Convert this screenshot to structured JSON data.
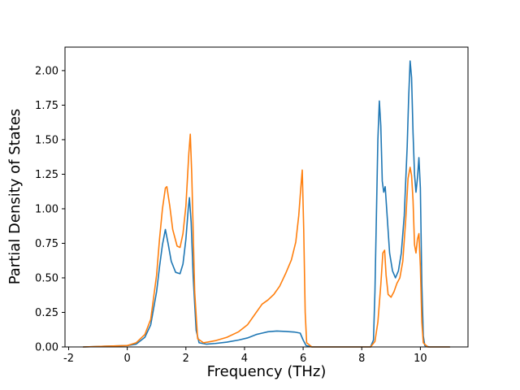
{
  "chart_data": {
    "type": "line",
    "title": "",
    "xlabel": "Frequency (THz)",
    "ylabel": "Partial Density of States",
    "xlim": [
      -2.125,
      11.625
    ],
    "ylim": [
      0,
      2.17
    ],
    "grid": false,
    "legend": "none",
    "xticks": {
      "values": [
        -2,
        0,
        2,
        4,
        6,
        8,
        10
      ],
      "labels": [
        "-2",
        "0",
        "2",
        "4",
        "6",
        "8",
        "10"
      ]
    },
    "yticks": {
      "values": [
        0.0,
        0.25,
        0.5,
        0.75,
        1.0,
        1.25,
        1.5,
        1.75,
        2.0
      ],
      "labels": [
        "0.00",
        "0.25",
        "0.50",
        "0.75",
        "1.00",
        "1.25",
        "1.50",
        "1.75",
        "2.00"
      ]
    },
    "series": [
      {
        "name": "pdos-series-blue",
        "color": "#1f77b4",
        "points": [
          [
            -1.5,
            0
          ],
          [
            0,
            0.01
          ],
          [
            0.3,
            0.02
          ],
          [
            0.6,
            0.07
          ],
          [
            0.8,
            0.16
          ],
          [
            1.0,
            0.4
          ],
          [
            1.1,
            0.58
          ],
          [
            1.2,
            0.74
          ],
          [
            1.3,
            0.85
          ],
          [
            1.4,
            0.74
          ],
          [
            1.5,
            0.62
          ],
          [
            1.65,
            0.54
          ],
          [
            1.8,
            0.53
          ],
          [
            1.9,
            0.6
          ],
          [
            2.0,
            0.78
          ],
          [
            2.08,
            1.0
          ],
          [
            2.12,
            1.08
          ],
          [
            2.18,
            0.9
          ],
          [
            2.25,
            0.5
          ],
          [
            2.35,
            0.12
          ],
          [
            2.45,
            0.03
          ],
          [
            2.7,
            0.02
          ],
          [
            3.0,
            0.025
          ],
          [
            3.4,
            0.035
          ],
          [
            3.8,
            0.05
          ],
          [
            4.1,
            0.065
          ],
          [
            4.4,
            0.09
          ],
          [
            4.6,
            0.1
          ],
          [
            4.8,
            0.11
          ],
          [
            5.1,
            0.115
          ],
          [
            5.4,
            0.112
          ],
          [
            5.7,
            0.108
          ],
          [
            5.9,
            0.1
          ],
          [
            6.0,
            0.05
          ],
          [
            6.1,
            0.01
          ],
          [
            6.3,
            0
          ],
          [
            8.3,
            0
          ],
          [
            8.4,
            0.05
          ],
          [
            8.45,
            0.4
          ],
          [
            8.5,
            0.95
          ],
          [
            8.55,
            1.5
          ],
          [
            8.6,
            1.78
          ],
          [
            8.65,
            1.6
          ],
          [
            8.7,
            1.2
          ],
          [
            8.75,
            1.12
          ],
          [
            8.8,
            1.16
          ],
          [
            8.85,
            1.0
          ],
          [
            8.95,
            0.68
          ],
          [
            9.05,
            0.55
          ],
          [
            9.15,
            0.5
          ],
          [
            9.25,
            0.55
          ],
          [
            9.35,
            0.68
          ],
          [
            9.45,
            0.95
          ],
          [
            9.55,
            1.45
          ],
          [
            9.6,
            1.8
          ],
          [
            9.65,
            2.07
          ],
          [
            9.7,
            1.95
          ],
          [
            9.75,
            1.55
          ],
          [
            9.8,
            1.25
          ],
          [
            9.85,
            1.12
          ],
          [
            9.9,
            1.22
          ],
          [
            9.95,
            1.37
          ],
          [
            10.0,
            1.15
          ],
          [
            10.05,
            0.45
          ],
          [
            10.1,
            0.08
          ],
          [
            10.15,
            0.01
          ],
          [
            10.3,
            0
          ],
          [
            11.0,
            0
          ]
        ]
      },
      {
        "name": "pdos-series-orange",
        "color": "#ff7f0e",
        "points": [
          [
            -1.5,
            0
          ],
          [
            0,
            0.01
          ],
          [
            0.3,
            0.03
          ],
          [
            0.6,
            0.09
          ],
          [
            0.8,
            0.2
          ],
          [
            1.0,
            0.52
          ],
          [
            1.1,
            0.78
          ],
          [
            1.2,
            1.0
          ],
          [
            1.3,
            1.15
          ],
          [
            1.35,
            1.16
          ],
          [
            1.45,
            1.02
          ],
          [
            1.55,
            0.85
          ],
          [
            1.7,
            0.73
          ],
          [
            1.8,
            0.72
          ],
          [
            1.9,
            0.82
          ],
          [
            2.0,
            1.02
          ],
          [
            2.1,
            1.4
          ],
          [
            2.15,
            1.54
          ],
          [
            2.2,
            1.25
          ],
          [
            2.3,
            0.4
          ],
          [
            2.4,
            0.06
          ],
          [
            2.6,
            0.03
          ],
          [
            3.0,
            0.045
          ],
          [
            3.4,
            0.07
          ],
          [
            3.8,
            0.11
          ],
          [
            4.1,
            0.16
          ],
          [
            4.4,
            0.25
          ],
          [
            4.6,
            0.31
          ],
          [
            4.8,
            0.34
          ],
          [
            5.0,
            0.38
          ],
          [
            5.2,
            0.44
          ],
          [
            5.4,
            0.53
          ],
          [
            5.6,
            0.63
          ],
          [
            5.75,
            0.76
          ],
          [
            5.85,
            0.95
          ],
          [
            5.92,
            1.15
          ],
          [
            5.97,
            1.28
          ],
          [
            6.02,
            0.85
          ],
          [
            6.07,
            0.25
          ],
          [
            6.12,
            0.03
          ],
          [
            6.3,
            0
          ],
          [
            8.3,
            0
          ],
          [
            8.45,
            0.04
          ],
          [
            8.55,
            0.18
          ],
          [
            8.65,
            0.45
          ],
          [
            8.72,
            0.68
          ],
          [
            8.78,
            0.7
          ],
          [
            8.83,
            0.52
          ],
          [
            8.9,
            0.38
          ],
          [
            9.0,
            0.36
          ],
          [
            9.1,
            0.4
          ],
          [
            9.2,
            0.46
          ],
          [
            9.3,
            0.5
          ],
          [
            9.4,
            0.62
          ],
          [
            9.5,
            0.92
          ],
          [
            9.58,
            1.22
          ],
          [
            9.65,
            1.3
          ],
          [
            9.7,
            1.24
          ],
          [
            9.75,
            1.06
          ],
          [
            9.8,
            0.74
          ],
          [
            9.85,
            0.68
          ],
          [
            9.9,
            0.78
          ],
          [
            9.95,
            0.82
          ],
          [
            10.0,
            0.58
          ],
          [
            10.05,
            0.18
          ],
          [
            10.1,
            0.03
          ],
          [
            10.25,
            0
          ],
          [
            11.0,
            0
          ]
        ]
      }
    ]
  }
}
